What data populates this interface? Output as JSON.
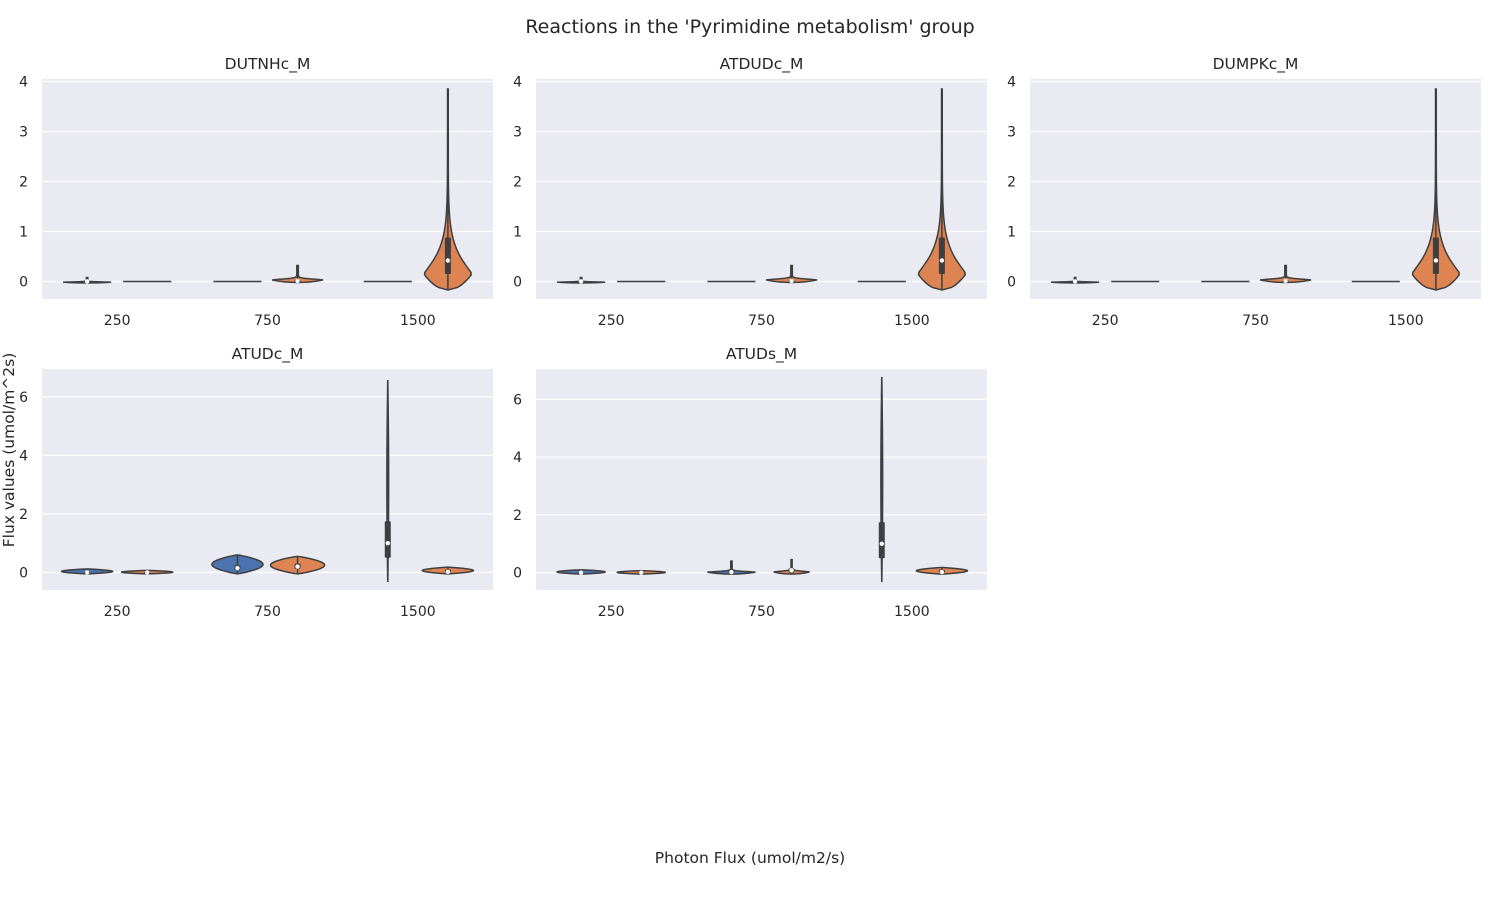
{
  "chart_data": {
    "type": "violin",
    "suptitle": "Reactions in the 'Pyrimidine metabolism' group",
    "xlabel": "Photon Flux (umol/m2/s)",
    "ylabel": "Flux values (umol/m^2s)",
    "categories": [
      "250",
      "750",
      "1500"
    ],
    "hue_colors": [
      "#4c72b0",
      "#dd8452"
    ],
    "grid": true,
    "panels": [
      {
        "title": "DUTNHc_M",
        "ylim": [
          -0.35,
          4.05
        ],
        "yticks": [
          "0",
          "1",
          "2",
          "3",
          "4"
        ],
        "ytick_values": [
          0,
          1,
          2,
          3,
          4
        ],
        "violins": [
          {
            "category": "250",
            "hue": 0,
            "min": -0.03,
            "max": 0.08,
            "q1": -0.01,
            "median": 0.0,
            "q3": 0.01,
            "width": 0.8,
            "shape": "spike"
          },
          {
            "category": "250",
            "hue": 1,
            "min": 0.0,
            "max": 0.0,
            "median": 0.0,
            "width": 0.8,
            "shape": "flat"
          },
          {
            "category": "750",
            "hue": 0,
            "min": 0.0,
            "max": 0.0,
            "median": 0.0,
            "width": 0.8,
            "shape": "flat"
          },
          {
            "category": "750",
            "hue": 1,
            "min": -0.02,
            "max": 0.32,
            "q1": -0.01,
            "median": 0.01,
            "q3": 0.03,
            "width": 0.85,
            "shape": "spike"
          },
          {
            "category": "1500",
            "hue": 0,
            "min": 0.0,
            "max": 0.0,
            "median": 0.0,
            "width": 0.8,
            "shape": "flat"
          },
          {
            "category": "1500",
            "hue": 1,
            "min": -0.17,
            "max": 3.85,
            "q1": 0.15,
            "median": 0.42,
            "q3": 0.88,
            "width": 0.8,
            "shape": "bulb"
          }
        ]
      },
      {
        "title": "ATDUDc_M",
        "ylim": [
          -0.35,
          4.05
        ],
        "yticks": [
          "0",
          "1",
          "2",
          "3",
          "4"
        ],
        "ytick_values": [
          0,
          1,
          2,
          3,
          4
        ],
        "violins": [
          {
            "category": "250",
            "hue": 0,
            "min": -0.03,
            "max": 0.08,
            "q1": -0.01,
            "median": 0.0,
            "q3": 0.01,
            "width": 0.8,
            "shape": "spike"
          },
          {
            "category": "250",
            "hue": 1,
            "min": 0.0,
            "max": 0.0,
            "median": 0.0,
            "width": 0.8,
            "shape": "flat"
          },
          {
            "category": "750",
            "hue": 0,
            "min": 0.0,
            "max": 0.0,
            "median": 0.0,
            "width": 0.8,
            "shape": "flat"
          },
          {
            "category": "750",
            "hue": 1,
            "min": -0.02,
            "max": 0.32,
            "q1": -0.01,
            "median": 0.01,
            "q3": 0.03,
            "width": 0.85,
            "shape": "spike"
          },
          {
            "category": "1500",
            "hue": 0,
            "min": 0.0,
            "max": 0.0,
            "median": 0.0,
            "width": 0.8,
            "shape": "flat"
          },
          {
            "category": "1500",
            "hue": 1,
            "min": -0.17,
            "max": 3.85,
            "q1": 0.15,
            "median": 0.42,
            "q3": 0.88,
            "width": 0.8,
            "shape": "bulb"
          }
        ]
      },
      {
        "title": "DUMPKc_M",
        "ylim": [
          -0.35,
          4.05
        ],
        "yticks": [
          "0",
          "1",
          "2",
          "3",
          "4"
        ],
        "ytick_values": [
          0,
          1,
          2,
          3,
          4
        ],
        "violins": [
          {
            "category": "250",
            "hue": 0,
            "min": -0.03,
            "max": 0.08,
            "q1": -0.01,
            "median": 0.0,
            "q3": 0.01,
            "width": 0.8,
            "shape": "spike"
          },
          {
            "category": "250",
            "hue": 1,
            "min": 0.0,
            "max": 0.0,
            "median": 0.0,
            "width": 0.8,
            "shape": "flat"
          },
          {
            "category": "750",
            "hue": 0,
            "min": 0.0,
            "max": 0.0,
            "median": 0.0,
            "width": 0.8,
            "shape": "flat"
          },
          {
            "category": "750",
            "hue": 1,
            "min": -0.02,
            "max": 0.32,
            "q1": -0.01,
            "median": 0.01,
            "q3": 0.03,
            "width": 0.85,
            "shape": "spike"
          },
          {
            "category": "1500",
            "hue": 0,
            "min": 0.0,
            "max": 0.0,
            "median": 0.0,
            "width": 0.8,
            "shape": "flat"
          },
          {
            "category": "1500",
            "hue": 1,
            "min": -0.17,
            "max": 3.85,
            "q1": 0.15,
            "median": 0.42,
            "q3": 0.88,
            "width": 0.8,
            "shape": "bulb"
          }
        ]
      },
      {
        "title": "ATUDc_M",
        "ylim": [
          -0.6,
          6.95
        ],
        "yticks": [
          "0",
          "2",
          "4",
          "6"
        ],
        "ytick_values": [
          0,
          2,
          4,
          6
        ],
        "violins": [
          {
            "category": "250",
            "hue": 0,
            "min": -0.05,
            "max": 0.12,
            "q1": -0.01,
            "median": 0.0,
            "q3": 0.03,
            "width": 0.85,
            "shape": "blob"
          },
          {
            "category": "250",
            "hue": 1,
            "min": -0.05,
            "max": 0.07,
            "q1": -0.01,
            "median": 0.0,
            "q3": 0.02,
            "width": 0.85,
            "shape": "blob"
          },
          {
            "category": "750",
            "hue": 0,
            "min": -0.05,
            "max": 0.6,
            "q1": 0.08,
            "median": 0.15,
            "q3": 0.25,
            "width": 0.85,
            "shape": "blob"
          },
          {
            "category": "750",
            "hue": 1,
            "min": -0.05,
            "max": 0.55,
            "q1": 0.12,
            "median": 0.2,
            "q3": 0.3,
            "width": 0.9,
            "shape": "blob"
          },
          {
            "category": "1500",
            "hue": 0,
            "min": -0.3,
            "max": 6.55,
            "q1": 0.5,
            "median": 1.0,
            "q3": 1.75,
            "width": 0.08,
            "shape": "thin"
          },
          {
            "category": "1500",
            "hue": 1,
            "min": -0.05,
            "max": 0.18,
            "q1": 0.0,
            "median": 0.02,
            "q3": 0.1,
            "width": 0.85,
            "shape": "blob"
          }
        ]
      },
      {
        "title": "ATUDs_M",
        "ylim": [
          -0.6,
          7.05
        ],
        "yticks": [
          "0",
          "2",
          "4",
          "6"
        ],
        "ytick_values": [
          0,
          2,
          4,
          6
        ],
        "violins": [
          {
            "category": "250",
            "hue": 0,
            "min": -0.05,
            "max": 0.1,
            "q1": -0.01,
            "median": 0.0,
            "q3": 0.03,
            "width": 0.8,
            "shape": "blob"
          },
          {
            "category": "250",
            "hue": 1,
            "min": -0.05,
            "max": 0.07,
            "q1": -0.01,
            "median": 0.0,
            "q3": 0.02,
            "width": 0.8,
            "shape": "blob"
          },
          {
            "category": "750",
            "hue": 0,
            "min": -0.05,
            "max": 0.4,
            "q1": 0.0,
            "median": 0.02,
            "q3": 0.08,
            "width": 0.8,
            "shape": "spike"
          },
          {
            "category": "750",
            "hue": 1,
            "min": -0.05,
            "max": 0.45,
            "q1": 0.0,
            "median": 0.08,
            "q3": 0.15,
            "width": 0.6,
            "shape": "spike"
          },
          {
            "category": "1500",
            "hue": 0,
            "min": -0.3,
            "max": 6.75,
            "q1": 0.5,
            "median": 1.0,
            "q3": 1.75,
            "width": 0.08,
            "shape": "thin"
          },
          {
            "category": "1500",
            "hue": 1,
            "min": -0.05,
            "max": 0.18,
            "q1": 0.0,
            "median": 0.02,
            "q3": 0.1,
            "width": 0.85,
            "shape": "blob"
          }
        ]
      }
    ]
  }
}
